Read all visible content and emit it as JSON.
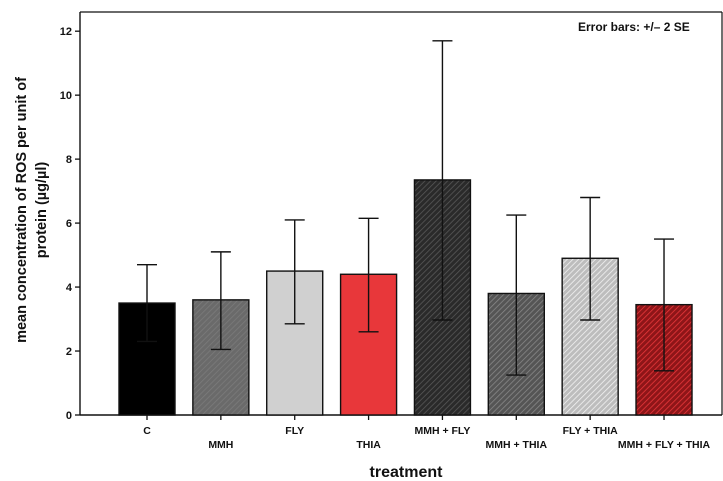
{
  "chart_data": {
    "type": "bar",
    "categories": [
      "C",
      "MMH",
      "FLY",
      "THIA",
      "MMH + FLY",
      "MMH + THIA",
      "FLY + THIA",
      "MMH + FLY + THIA"
    ],
    "values": [
      3.5,
      3.6,
      4.5,
      4.4,
      7.35,
      3.8,
      4.9,
      3.45
    ],
    "error_upper": [
      4.7,
      5.1,
      6.1,
      6.15,
      11.7,
      6.25,
      6.8,
      5.5
    ],
    "error_lower": [
      2.3,
      2.05,
      2.85,
      2.6,
      2.97,
      1.25,
      2.97,
      1.38
    ],
    "title": "",
    "xlabel": "treatment",
    "ylabel": "mean concentration of ROS per unit of protein (µg/µl)",
    "ylabel_lines": [
      "mean concentration of ROS per unit of",
      "protein (µg/µl)"
    ],
    "ylim": [
      0,
      12.6
    ],
    "yticks": [
      0,
      2,
      4,
      6,
      8,
      10,
      12
    ],
    "grid": false,
    "annotation": "Error bars: +/– 2 SE",
    "bar_styles": [
      {
        "fill": "#000000",
        "pattern": "none"
      },
      {
        "fill": "#6a6a6a",
        "pattern": "diag-light"
      },
      {
        "fill": "#d0d0d0",
        "pattern": "none"
      },
      {
        "fill": "#e8373a",
        "pattern": "none"
      },
      {
        "fill": "#2a2a2a",
        "pattern": "diag-dark"
      },
      {
        "fill": "#555555",
        "pattern": "diag-dark"
      },
      {
        "fill": "#cfcfcf",
        "pattern": "diag-white"
      },
      {
        "fill": "#b81e22",
        "pattern": "diag-dark"
      }
    ]
  }
}
